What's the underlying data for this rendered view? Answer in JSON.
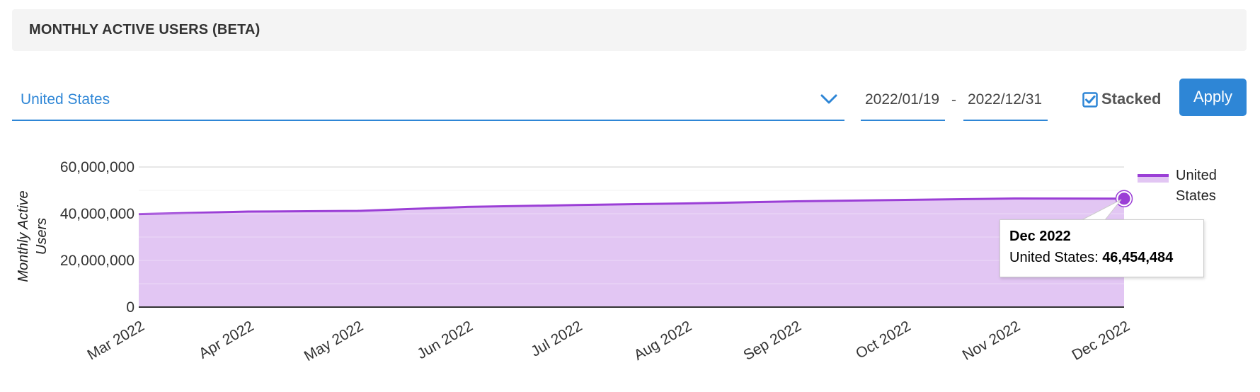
{
  "header": {
    "title": "MONTHLY ACTIVE USERS (BETA)"
  },
  "filters": {
    "country": "United States",
    "date_start": "2022/01/19",
    "date_separator": "-",
    "date_end": "2022/12/31",
    "stacked_label": "Stacked",
    "stacked_checked": true,
    "apply_label": "Apply"
  },
  "icons": {
    "dropdown": "chevron-down-icon",
    "checkbox": "checkbox-checked-icon"
  },
  "colors": {
    "accent": "#2e86d6",
    "series_line": "#9b3fd6",
    "series_fill": "#e2c6f3"
  },
  "chart_data": {
    "type": "area",
    "x": [
      "Mar 2022",
      "Apr 2022",
      "May 2022",
      "Jun 2022",
      "Jul 2022",
      "Aug 2022",
      "Sep 2022",
      "Oct 2022",
      "Nov 2022",
      "Dec 2022"
    ],
    "series": [
      {
        "name": "United States",
        "values": [
          39800000,
          40900000,
          41200000,
          42900000,
          43700000,
          44400000,
          45300000,
          45900000,
          46500000,
          46454484
        ]
      }
    ],
    "ylabel": "Monthly Active Users",
    "ylim": [
      0,
      60000000
    ],
    "yticks": [
      0,
      20000000,
      40000000,
      60000000
    ],
    "ytick_labels": [
      "0",
      "20,000,000",
      "40,000,000",
      "60,000,000"
    ],
    "grid": true,
    "minor_grid": true,
    "stacked": true,
    "legend": "right",
    "tooltip": {
      "title": "Dec 2022",
      "series_label": "United States:",
      "value": "46,454,484"
    }
  }
}
